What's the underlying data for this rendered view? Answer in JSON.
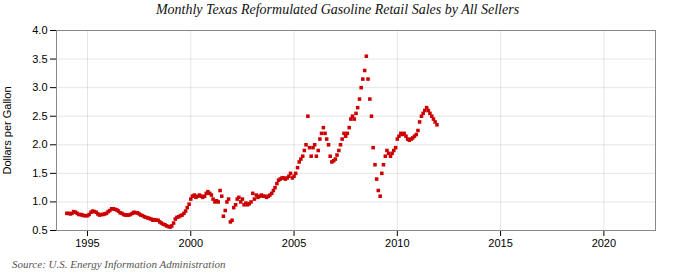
{
  "chart_data": {
    "type": "scatter",
    "title": "Monthly Texas Reformulated Gasoline Retail Sales by All Sellers",
    "ylabel": "Dollars per Gallon",
    "source": "Source: U.S. Energy Information Administration",
    "color": "#CC0000",
    "marker": "square",
    "grid": true,
    "xlim": [
      1993.5,
      2022.5
    ],
    "ylim": [
      0.5,
      4.0
    ],
    "xticks": [
      1995,
      2000,
      2005,
      2010,
      2015,
      2020
    ],
    "yticks": [
      0.5,
      {
        "value": 1.0,
        "label": "1.0"
      },
      1.5,
      {
        "value": 2.0,
        "label": "2.0"
      },
      2.5,
      {
        "value": 3.0,
        "label": "3.0"
      },
      3.5,
      {
        "value": 4.0,
        "label": "4.0"
      }
    ],
    "x": [
      1994.0,
      1994.08,
      1994.17,
      1994.25,
      1994.33,
      1994.42,
      1994.5,
      1994.58,
      1994.67,
      1994.75,
      1994.83,
      1994.92,
      1995.0,
      1995.08,
      1995.17,
      1995.25,
      1995.33,
      1995.42,
      1995.5,
      1995.58,
      1995.67,
      1995.75,
      1995.83,
      1995.92,
      1996.0,
      1996.08,
      1996.17,
      1996.25,
      1996.33,
      1996.42,
      1996.5,
      1996.58,
      1996.67,
      1996.75,
      1996.83,
      1996.92,
      1997.0,
      1997.08,
      1997.17,
      1997.25,
      1997.33,
      1997.42,
      1997.5,
      1997.58,
      1997.67,
      1997.75,
      1997.83,
      1997.92,
      1998.0,
      1998.08,
      1998.17,
      1998.25,
      1998.33,
      1998.42,
      1998.5,
      1998.58,
      1998.67,
      1998.75,
      1998.83,
      1998.92,
      1999.0,
      1999.08,
      1999.17,
      1999.25,
      1999.33,
      1999.42,
      1999.5,
      1999.58,
      1999.67,
      1999.75,
      1999.83,
      1999.92,
      2000.0,
      2000.08,
      2000.17,
      2000.25,
      2000.33,
      2000.42,
      2000.5,
      2000.58,
      2000.67,
      2000.75,
      2000.83,
      2000.92,
      2001.0,
      2001.08,
      2001.17,
      2001.25,
      2001.33,
      2001.42,
      2001.5,
      2001.58,
      2001.67,
      2001.75,
      2001.83,
      2001.92,
      2002.0,
      2002.08,
      2002.17,
      2002.25,
      2002.33,
      2002.42,
      2002.5,
      2002.58,
      2002.67,
      2002.75,
      2002.83,
      2002.92,
      2003.0,
      2003.08,
      2003.17,
      2003.25,
      2003.33,
      2003.42,
      2003.5,
      2003.58,
      2003.67,
      2003.75,
      2003.83,
      2003.92,
      2004.0,
      2004.08,
      2004.17,
      2004.25,
      2004.33,
      2004.42,
      2004.5,
      2004.58,
      2004.67,
      2004.75,
      2004.83,
      2004.92,
      2005.0,
      2005.08,
      2005.17,
      2005.25,
      2005.33,
      2005.42,
      2005.5,
      2005.58,
      2005.67,
      2005.75,
      2005.83,
      2005.92,
      2006.0,
      2006.08,
      2006.17,
      2006.25,
      2006.33,
      2006.42,
      2006.5,
      2006.58,
      2006.67,
      2006.75,
      2006.83,
      2006.92,
      2007.0,
      2007.08,
      2007.17,
      2007.25,
      2007.33,
      2007.42,
      2007.5,
      2007.58,
      2007.67,
      2007.75,
      2007.83,
      2007.92,
      2008.0,
      2008.08,
      2008.17,
      2008.25,
      2008.33,
      2008.42,
      2008.5,
      2008.58,
      2008.67,
      2008.75,
      2008.83,
      2008.92,
      2009.0,
      2009.08,
      2009.17,
      2009.25,
      2009.33,
      2009.42,
      2009.5,
      2009.58,
      2009.67,
      2009.75,
      2009.83,
      2009.92,
      2010.0,
      2010.08,
      2010.17,
      2010.25,
      2010.33,
      2010.42,
      2010.5,
      2010.58,
      2010.67,
      2010.75,
      2010.83,
      2010.92,
      2011.0,
      2011.08,
      2011.17,
      2011.25,
      2011.33,
      2011.42,
      2011.5,
      2011.58,
      2011.67,
      2011.75,
      2011.83,
      2011.92
    ],
    "values": [
      0.8,
      0.8,
      0.79,
      0.8,
      0.83,
      0.82,
      0.8,
      0.78,
      0.78,
      0.77,
      0.76,
      0.76,
      0.76,
      0.78,
      0.82,
      0.84,
      0.83,
      0.82,
      0.79,
      0.77,
      0.78,
      0.78,
      0.79,
      0.8,
      0.83,
      0.85,
      0.88,
      0.88,
      0.87,
      0.86,
      0.84,
      0.81,
      0.8,
      0.78,
      0.77,
      0.77,
      0.77,
      0.78,
      0.8,
      0.82,
      0.81,
      0.81,
      0.79,
      0.77,
      0.76,
      0.74,
      0.73,
      0.72,
      0.71,
      0.7,
      0.68,
      0.69,
      0.68,
      0.68,
      0.65,
      0.63,
      0.61,
      0.6,
      0.58,
      0.57,
      0.56,
      0.58,
      0.63,
      0.7,
      0.73,
      0.74,
      0.76,
      0.77,
      0.8,
      0.84,
      0.9,
      0.96,
      1.05,
      1.1,
      1.12,
      1.08,
      1.1,
      1.12,
      1.1,
      1.08,
      1.1,
      1.15,
      1.18,
      1.15,
      1.12,
      1.05,
      1.0,
      1.02,
      1.0,
      1.2,
      1.1,
      0.75,
      0.85,
      1.0,
      1.05,
      0.65,
      0.68,
      0.9,
      0.95,
      1.05,
      1.08,
      1.0,
      1.05,
      0.95,
      0.98,
      0.95,
      0.97,
      1.0,
      1.15,
      1.05,
      1.12,
      1.08,
      1.1,
      1.12,
      1.1,
      1.1,
      1.08,
      1.1,
      1.12,
      1.15,
      1.2,
      1.25,
      1.32,
      1.38,
      1.4,
      1.42,
      1.42,
      1.4,
      1.42,
      1.45,
      1.5,
      1.42,
      1.45,
      1.5,
      1.6,
      1.7,
      1.75,
      1.8,
      1.9,
      2.0,
      2.5,
      1.95,
      1.8,
      1.95,
      2.0,
      1.8,
      1.9,
      2.1,
      2.2,
      2.3,
      2.2,
      2.1,
      2.0,
      1.8,
      1.7,
      1.72,
      1.75,
      1.82,
      1.9,
      2.0,
      2.1,
      2.2,
      2.15,
      2.2,
      2.3,
      2.45,
      2.5,
      2.45,
      2.55,
      2.65,
      2.8,
      3.0,
      3.15,
      3.3,
      3.55,
      3.15,
      2.8,
      2.5,
      1.95,
      1.65,
      1.4,
      1.2,
      1.1,
      1.5,
      1.65,
      1.8,
      1.9,
      1.85,
      1.8,
      1.85,
      1.9,
      1.95,
      2.1,
      2.15,
      2.2,
      2.18,
      2.2,
      2.15,
      2.1,
      2.08,
      2.1,
      2.12,
      2.15,
      2.18,
      2.25,
      2.4,
      2.5,
      2.55,
      2.6,
      2.65,
      2.6,
      2.55,
      2.5,
      2.45,
      2.4,
      2.35
    ]
  }
}
